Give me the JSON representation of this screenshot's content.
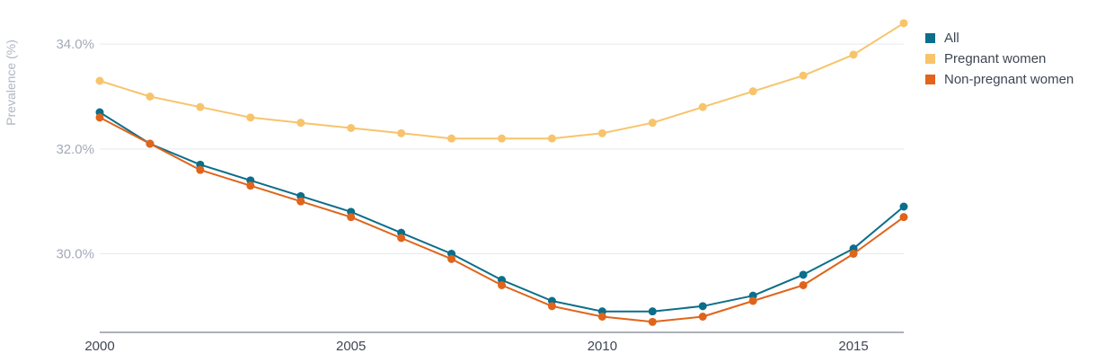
{
  "chart_data": {
    "type": "line",
    "ylabel": "Prevalence (%)",
    "xlim": [
      2000,
      2016
    ],
    "ylim": [
      28.5,
      34.5
    ],
    "yticks": [
      30.0,
      32.0,
      34.0
    ],
    "ytick_labels": [
      "30.0%",
      "32.0%",
      "34.0%"
    ],
    "xticks": [
      2000,
      2005,
      2010,
      2015
    ],
    "xtick_labels": [
      "2000",
      "2005",
      "2010",
      "2015"
    ],
    "grid": "horizontal",
    "legend_position": "top-right",
    "x": [
      2000,
      2001,
      2002,
      2003,
      2004,
      2005,
      2006,
      2007,
      2008,
      2009,
      2010,
      2011,
      2012,
      2013,
      2014,
      2015,
      2016
    ],
    "series": [
      {
        "name": "All",
        "color": "#0b6e8a",
        "values": [
          32.7,
          32.1,
          31.7,
          31.4,
          31.1,
          30.8,
          30.4,
          30.0,
          29.5,
          29.1,
          28.9,
          28.9,
          29.0,
          29.2,
          29.6,
          30.1,
          30.9
        ]
      },
      {
        "name": "Pregnant women",
        "color": "#f7c46c",
        "values": [
          33.3,
          33.0,
          32.8,
          32.6,
          32.5,
          32.4,
          32.3,
          32.2,
          32.2,
          32.2,
          32.3,
          32.5,
          32.8,
          33.1,
          33.4,
          33.8,
          34.4
        ]
      },
      {
        "name": "Non-pregnant women",
        "color": "#e0641a",
        "values": [
          32.6,
          32.1,
          31.6,
          31.3,
          31.0,
          30.7,
          30.3,
          29.9,
          29.4,
          29.0,
          28.8,
          28.7,
          28.8,
          29.1,
          29.4,
          30.0,
          30.7
        ]
      }
    ]
  }
}
